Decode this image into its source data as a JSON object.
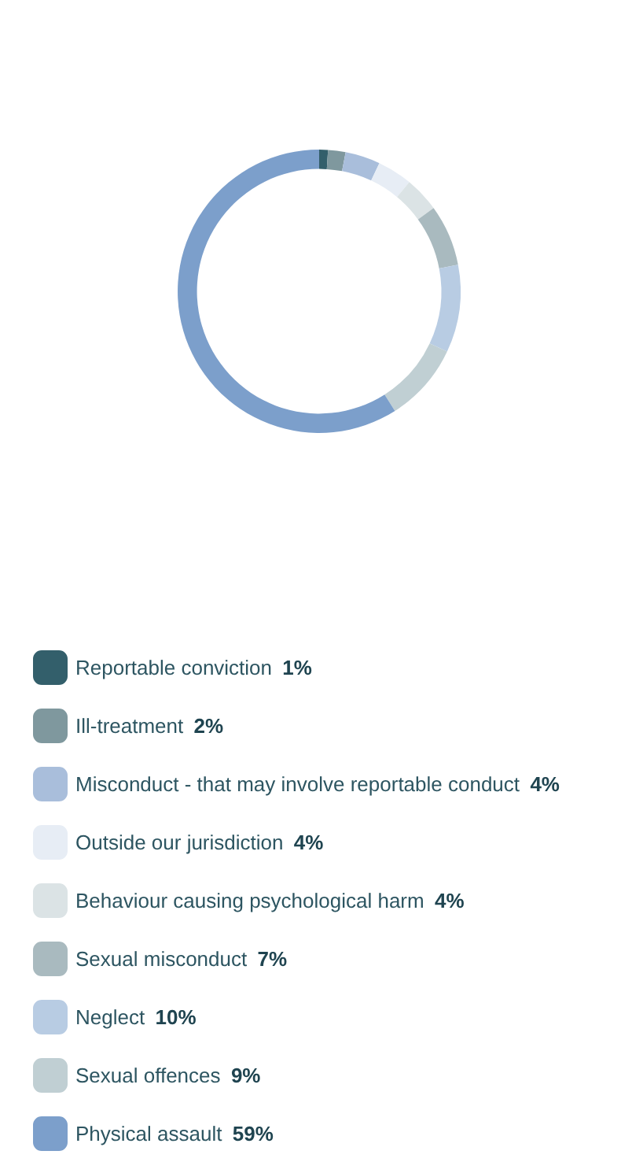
{
  "chart_data": {
    "type": "donut",
    "categories": [
      "Reportable conviction",
      "Ill-treatment",
      "Misconduct - that may involve reportable conduct",
      "Outside our jurisdiction",
      "Behaviour causing psychological harm",
      "Sexual misconduct",
      "Neglect",
      "Sexual offences",
      "Physical assault"
    ],
    "values": [
      1,
      2,
      4,
      4,
      4,
      7,
      10,
      9,
      59
    ],
    "value_labels": [
      "1%",
      "2%",
      "4%",
      "4%",
      "4%",
      "7%",
      "10%",
      "9%",
      "59%"
    ],
    "colors": [
      "#335f6b",
      "#7f989e",
      "#a9bedb",
      "#e7edf5",
      "#dbe3e5",
      "#a9babf",
      "#b8cce3",
      "#c0cfd3",
      "#7c9fcb"
    ],
    "legend": "bottom"
  }
}
